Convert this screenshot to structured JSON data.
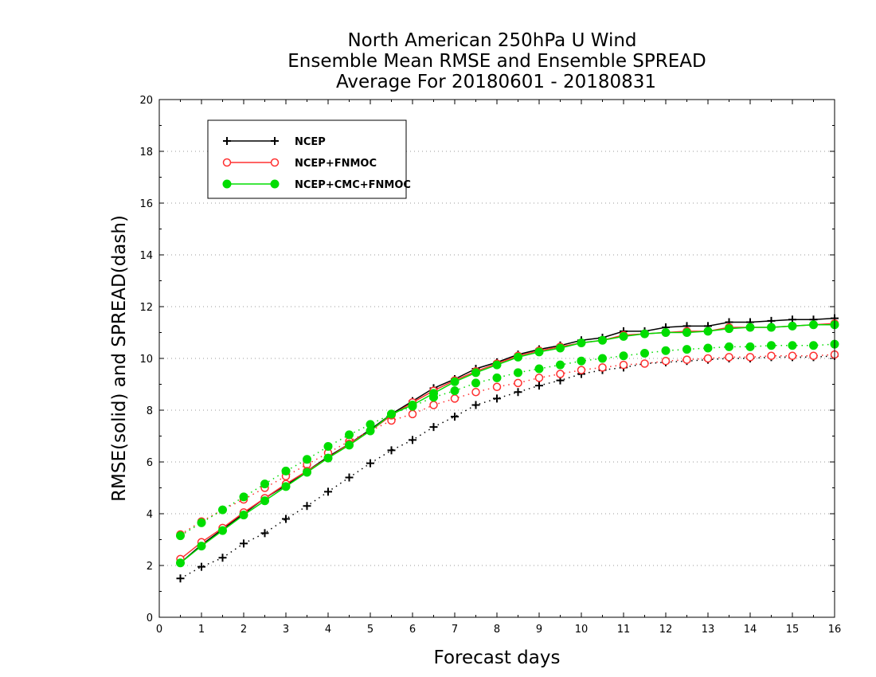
{
  "chart_data": {
    "type": "line",
    "title": [
      "North American 250hPa U Wind",
      "Ensemble Mean RMSE and Ensemble SPREAD",
      "Average For 20180601 - 20180831"
    ],
    "xlabel": "Forecast days",
    "ylabel": "RMSE(solid) and SPREAD(dash)",
    "xlim": [
      0,
      16
    ],
    "ylim": [
      0,
      20
    ],
    "xticks": [
      0,
      1,
      2,
      3,
      4,
      5,
      6,
      7,
      8,
      9,
      10,
      11,
      12,
      13,
      14,
      15,
      16
    ],
    "yticks": [
      0,
      2,
      4,
      6,
      8,
      10,
      12,
      14,
      16,
      18,
      20
    ],
    "grid": "horizontal dotted",
    "legend_position": "top-left",
    "x": [
      0.5,
      1,
      1.5,
      2,
      2.5,
      3,
      3.5,
      4,
      4.5,
      5,
      5.5,
      6,
      6.5,
      7,
      7.5,
      8,
      8.5,
      9,
      9.5,
      10,
      10.5,
      11,
      11.5,
      12,
      12.5,
      13,
      13.5,
      14,
      14.5,
      15,
      15.5,
      16
    ],
    "series": [
      {
        "name": "NCEP",
        "color": "#000000",
        "marker": "plus",
        "rmse": [
          2.1,
          2.8,
          3.4,
          4.0,
          4.6,
          5.1,
          5.65,
          6.2,
          6.7,
          7.25,
          7.85,
          8.35,
          8.85,
          9.2,
          9.6,
          9.85,
          10.15,
          10.35,
          10.5,
          10.7,
          10.8,
          11.05,
          11.05,
          11.2,
          11.25,
          11.25,
          11.4,
          11.4,
          11.45,
          11.5,
          11.5,
          11.55
        ],
        "spread": [
          1.5,
          1.95,
          2.3,
          2.85,
          3.25,
          3.8,
          4.3,
          4.85,
          5.4,
          5.95,
          6.45,
          6.85,
          7.35,
          7.75,
          8.2,
          8.45,
          8.7,
          8.95,
          9.15,
          9.4,
          9.55,
          9.65,
          9.8,
          9.85,
          9.9,
          9.95,
          10.0,
          10.0,
          10.05,
          10.05,
          10.05,
          10.1
        ]
      },
      {
        "name": "NCEP+FNMOC",
        "color": "#ff3030",
        "marker": "circle-open",
        "rmse": [
          2.25,
          2.9,
          3.45,
          4.05,
          4.6,
          5.15,
          5.65,
          6.15,
          6.7,
          7.2,
          7.8,
          8.3,
          8.75,
          9.15,
          9.5,
          9.8,
          10.1,
          10.3,
          10.45,
          10.6,
          10.7,
          10.9,
          10.95,
          11.0,
          11.05,
          11.05,
          11.2,
          11.2,
          11.2,
          11.25,
          11.3,
          11.35
        ],
        "spread": [
          3.2,
          3.7,
          4.15,
          4.55,
          5.0,
          5.45,
          5.9,
          6.35,
          6.8,
          7.2,
          7.6,
          7.85,
          8.2,
          8.45,
          8.7,
          8.9,
          9.05,
          9.25,
          9.4,
          9.55,
          9.65,
          9.75,
          9.8,
          9.9,
          9.95,
          10.0,
          10.05,
          10.05,
          10.1,
          10.1,
          10.1,
          10.15
        ]
      },
      {
        "name": "NCEP+CMC+FNMOC",
        "color": "#00dd00",
        "marker": "circle-filled",
        "rmse": [
          2.1,
          2.75,
          3.35,
          3.95,
          4.5,
          5.05,
          5.6,
          6.15,
          6.65,
          7.2,
          7.85,
          8.2,
          8.65,
          9.1,
          9.45,
          9.75,
          10.05,
          10.25,
          10.4,
          10.6,
          10.7,
          10.85,
          10.95,
          11.0,
          11.0,
          11.05,
          11.15,
          11.2,
          11.2,
          11.25,
          11.3,
          11.3
        ],
        "spread": [
          3.15,
          3.65,
          4.15,
          4.65,
          5.15,
          5.65,
          6.1,
          6.6,
          7.05,
          7.45,
          7.85,
          8.15,
          8.5,
          8.75,
          9.05,
          9.25,
          9.45,
          9.6,
          9.75,
          9.9,
          10.0,
          10.1,
          10.2,
          10.3,
          10.35,
          10.4,
          10.45,
          10.45,
          10.5,
          10.5,
          10.5,
          10.55
        ]
      }
    ]
  }
}
